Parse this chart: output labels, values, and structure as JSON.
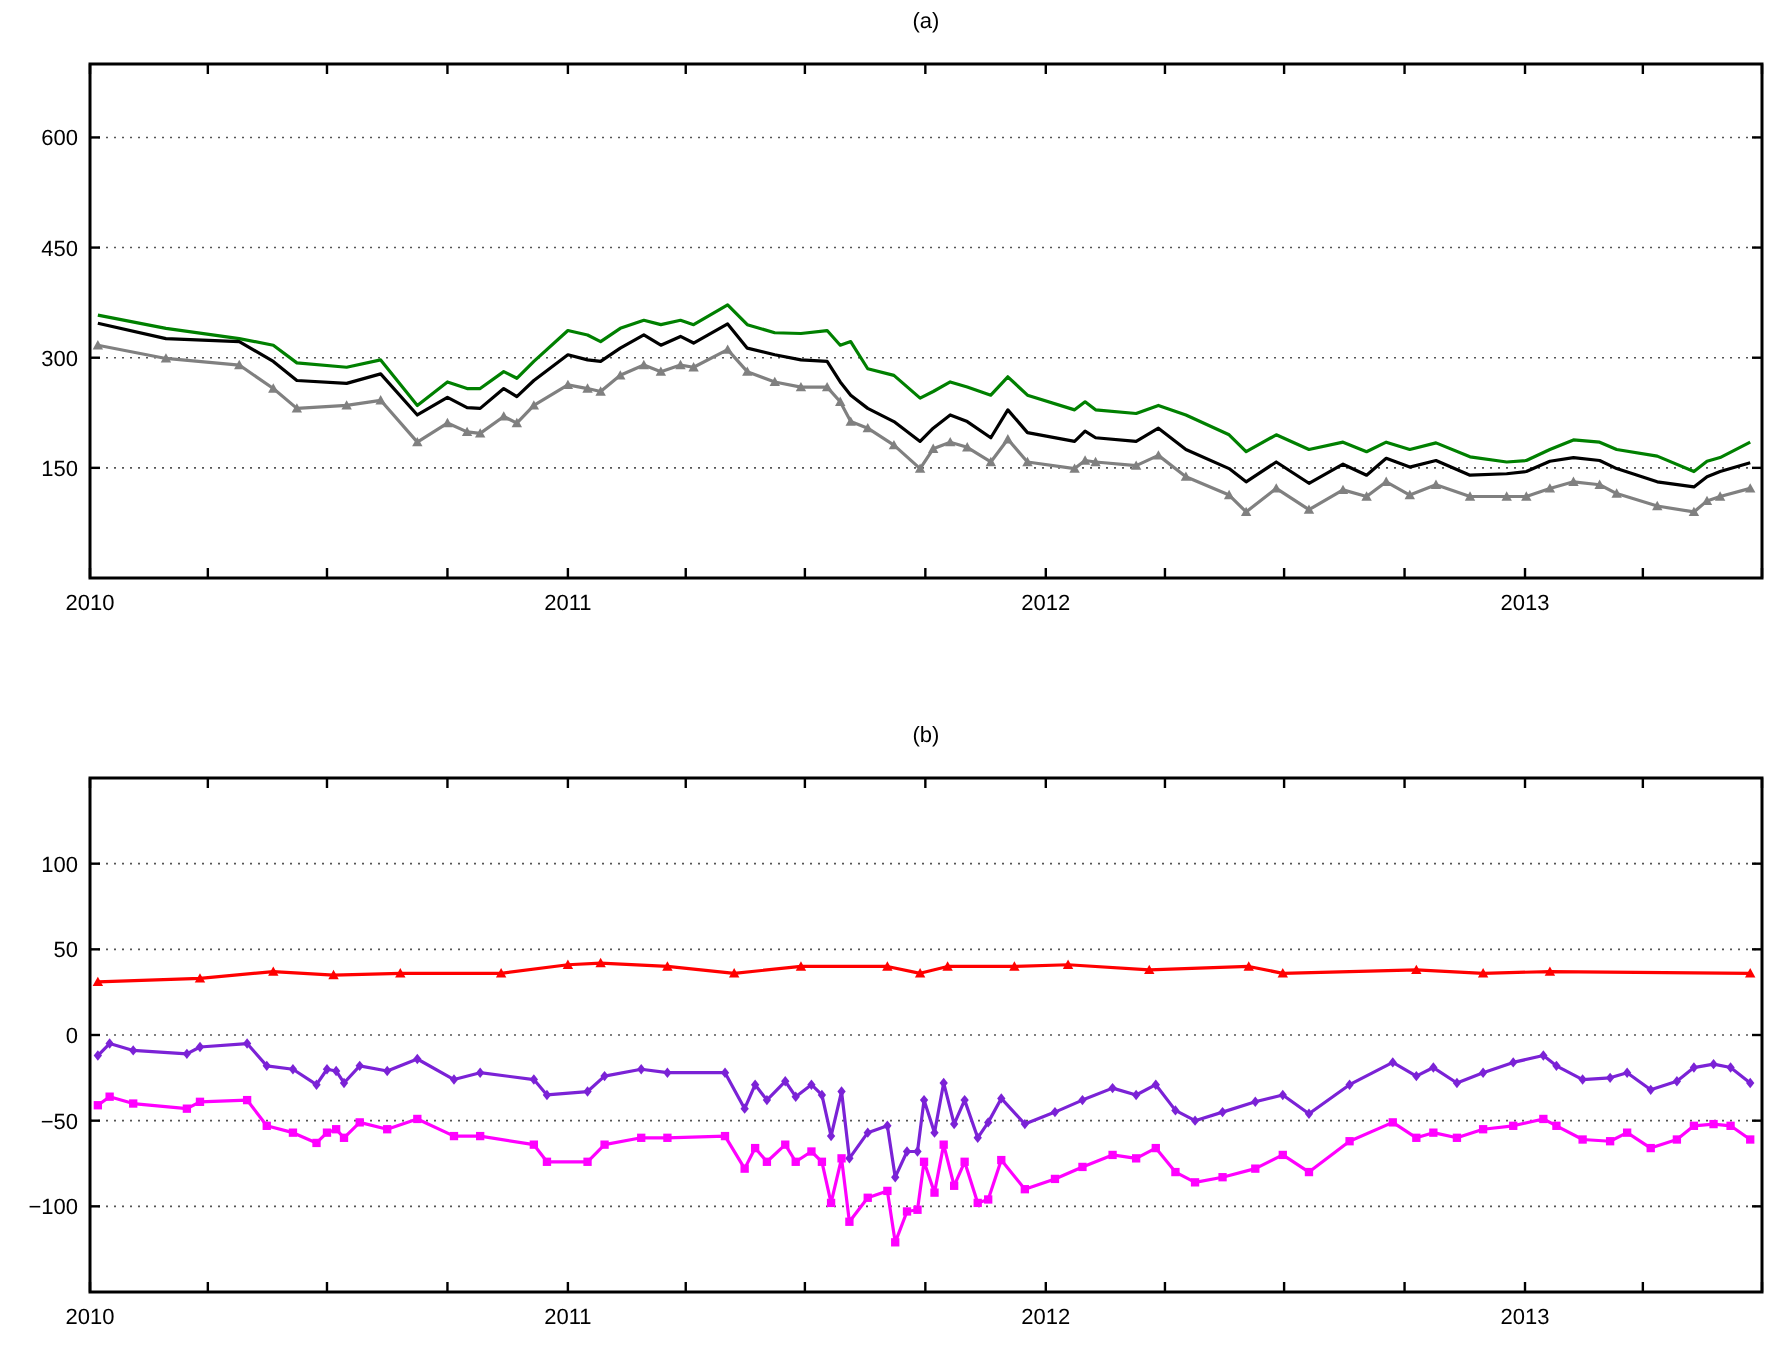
{
  "chart_data": [
    {
      "type": "line",
      "title": "(a)",
      "x": [
        "2010-01-07",
        "2010-02-28",
        "2010-04-25",
        "2010-05-21",
        "2010-06-08",
        "2010-07-16",
        "2010-08-11",
        "2010-09-08",
        "2010-10-01",
        "2010-10-16",
        "2010-10-26",
        "2010-11-13",
        "2010-11-23",
        "2010-12-06",
        "2011-01-01",
        "2011-01-16",
        "2011-01-26",
        "2011-02-10",
        "2011-02-28",
        "2011-03-13",
        "2011-03-28",
        "2011-04-07",
        "2011-05-03",
        "2011-05-18",
        "2011-06-08",
        "2011-06-28",
        "2011-07-18",
        "2011-07-28",
        "2011-08-05",
        "2011-08-18",
        "2011-09-07",
        "2011-09-27",
        "2011-10-07",
        "2011-10-20",
        "2011-11-02",
        "2011-11-20",
        "2011-12-03",
        "2011-12-18",
        "2012-01-23",
        "2012-01-31",
        "2012-02-08",
        "2012-03-10",
        "2012-03-27",
        "2012-04-17",
        "2012-05-20",
        "2012-06-02",
        "2012-06-25",
        "2012-07-20",
        "2012-08-15",
        "2012-09-02",
        "2012-09-17",
        "2012-10-05",
        "2012-10-25",
        "2012-11-20",
        "2012-12-18",
        "2013-01-02",
        "2013-01-20",
        "2013-02-07",
        "2013-02-27",
        "2013-03-12",
        "2013-04-12",
        "2013-05-10",
        "2013-05-20",
        "2013-05-30",
        "2013-06-22"
      ],
      "series": [
        {
          "color": "#008000",
          "marker": "none",
          "values": [
            358,
            340,
            326,
            317,
            293,
            287,
            297,
            235,
            267,
            258,
            258,
            281,
            272,
            295,
            337,
            331,
            322,
            340,
            351,
            345,
            351,
            345,
            372,
            345,
            334,
            333,
            337,
            317,
            322,
            285,
            276,
            245,
            254,
            267,
            260,
            249,
            274,
            249,
            229,
            240,
            229,
            224,
            235,
            222,
            195,
            172,
            195,
            175,
            185,
            172,
            185,
            175,
            184,
            165,
            158,
            160,
            175,
            188,
            185,
            175,
            166,
            145,
            159,
            164,
            185
          ]
        },
        {
          "color": "#000000",
          "marker": "none",
          "values": [
            347,
            326,
            322,
            295,
            269,
            265,
            278,
            222,
            246,
            232,
            231,
            258,
            247,
            269,
            304,
            297,
            295,
            313,
            331,
            317,
            329,
            320,
            346,
            313,
            304,
            297,
            295,
            267,
            249,
            231,
            213,
            186,
            204,
            222,
            213,
            191,
            229,
            198,
            186,
            200,
            191,
            186,
            204,
            175,
            149,
            131,
            158,
            129,
            155,
            140,
            163,
            151,
            160,
            140,
            142,
            145,
            159,
            164,
            160,
            149,
            131,
            124,
            138,
            145,
            157
          ]
        },
        {
          "color": "#808080",
          "marker": "triangle",
          "values": [
            317,
            299,
            290,
            258,
            231,
            235,
            242,
            185,
            211,
            199,
            197,
            220,
            211,
            235,
            263,
            258,
            254,
            276,
            290,
            281,
            290,
            287,
            311,
            281,
            267,
            260,
            260,
            240,
            213,
            204,
            181,
            149,
            176,
            185,
            178,
            158,
            189,
            158,
            149,
            160,
            158,
            153,
            167,
            138,
            113,
            90,
            122,
            93,
            120,
            111,
            131,
            113,
            127,
            111,
            111,
            111,
            122,
            131,
            127,
            115,
            98,
            90,
            105,
            111,
            122
          ]
        }
      ],
      "xlim": [
        "2010-01-01",
        "2013-07-01"
      ],
      "xticks": [
        {
          "value": "2010-01-01",
          "label": "2010"
        },
        {
          "value": "2010-04-01",
          "label": null
        },
        {
          "value": "2010-07-01",
          "label": null
        },
        {
          "value": "2010-10-01",
          "label": null
        },
        {
          "value": "2011-01-01",
          "label": "2011"
        },
        {
          "value": "2011-04-01",
          "label": null
        },
        {
          "value": "2011-07-01",
          "label": null
        },
        {
          "value": "2011-10-01",
          "label": null
        },
        {
          "value": "2012-01-01",
          "label": "2012"
        },
        {
          "value": "2012-04-01",
          "label": null
        },
        {
          "value": "2012-07-01",
          "label": null
        },
        {
          "value": "2012-10-01",
          "label": null
        },
        {
          "value": "2013-01-01",
          "label": "2013"
        },
        {
          "value": "2013-04-01",
          "label": null
        },
        {
          "value": "2013-07-01",
          "label": null
        }
      ],
      "ylim": [
        0,
        700
      ],
      "yticks": [
        150,
        300,
        450,
        600
      ],
      "grid": "y"
    },
    {
      "type": "line",
      "title": "(b)",
      "x": [
        "2010-01-07",
        "2010-01-16",
        "2010-02-03",
        "2010-03-16",
        "2010-03-26",
        "2010-05-01",
        "2010-05-16",
        "2010-06-05",
        "2010-06-23",
        "2010-07-01",
        "2010-07-08",
        "2010-07-14",
        "2010-07-26",
        "2010-08-16",
        "2010-09-08",
        "2010-10-06",
        "2010-10-26",
        "2010-12-06",
        "2010-12-16",
        "2011-01-16",
        "2011-01-29",
        "2011-02-26",
        "2011-03-18",
        "2011-05-01",
        "2011-05-16",
        "2011-05-24",
        "2011-06-02",
        "2011-06-16",
        "2011-06-24",
        "2011-07-06",
        "2011-07-14",
        "2011-07-21",
        "2011-07-29",
        "2011-08-04",
        "2011-08-18",
        "2011-09-02",
        "2011-09-08",
        "2011-09-17",
        "2011-09-25",
        "2011-09-30",
        "2011-10-08",
        "2011-10-15",
        "2011-10-23",
        "2011-10-31",
        "2011-11-10",
        "2011-11-18",
        "2011-11-28",
        "2011-12-16",
        "2012-01-08",
        "2012-01-29",
        "2012-02-21",
        "2012-03-10",
        "2012-03-25",
        "2012-04-09",
        "2012-04-24",
        "2012-05-15",
        "2012-06-09",
        "2012-06-30",
        "2012-07-20",
        "2012-08-20",
        "2012-09-22",
        "2012-10-10",
        "2012-10-23",
        "2012-11-10",
        "2012-11-30",
        "2012-12-23",
        "2013-01-15",
        "2013-01-25",
        "2013-02-14",
        "2013-03-07",
        "2013-03-20",
        "2013-04-07",
        "2013-04-27",
        "2013-05-10",
        "2013-05-25",
        "2013-06-07",
        "2013-06-22"
      ],
      "series": [
        {
          "color": "#ff0000",
          "marker": "triangle",
          "x": [
            "2010-01-07",
            "2010-03-26",
            "2010-05-21",
            "2010-07-06",
            "2010-08-26",
            "2010-11-11",
            "2011-01-01",
            "2011-01-26",
            "2011-03-18",
            "2011-05-08",
            "2011-06-28",
            "2011-09-02",
            "2011-09-27",
            "2011-10-18",
            "2011-12-08",
            "2012-01-18",
            "2012-03-20",
            "2012-06-04",
            "2012-06-30",
            "2012-10-10",
            "2012-11-30",
            "2013-01-20",
            "2013-06-22"
          ],
          "values": [
            31,
            33,
            37,
            35,
            36,
            36,
            41,
            42,
            40,
            36,
            40,
            40,
            36,
            40,
            40,
            41,
            38,
            40,
            36,
            38,
            36,
            37,
            36
          ]
        },
        {
          "color": "#7b22d6",
          "marker": "diamond",
          "values": [
            -12,
            -5,
            -9,
            -11,
            -7,
            -5,
            -18,
            -20,
            -29,
            -20,
            -21,
            -28,
            -18,
            -21,
            -14,
            -26,
            -22,
            -26,
            -35,
            -33,
            -24,
            -20,
            -22,
            -22,
            -43,
            -29,
            -38,
            -27,
            -36,
            -29,
            -35,
            -59,
            -33,
            -72,
            -57,
            -53,
            -83,
            -68,
            -68,
            -38,
            -57,
            -28,
            -52,
            -38,
            -60,
            -51,
            -37,
            -52,
            -45,
            -38,
            -31,
            -35,
            -29,
            -44,
            -50,
            -45,
            -39,
            -35,
            -46,
            -29,
            -16,
            -24,
            -19,
            -28,
            -22,
            -16,
            -12,
            -18,
            -26,
            -25,
            -22,
            -32,
            -27,
            -19,
            -17,
            -19,
            -28
          ]
        },
        {
          "color": "#ff00ff",
          "marker": "square",
          "values": [
            -41,
            -36,
            -40,
            -43,
            -39,
            -38,
            -53,
            -57,
            -63,
            -57,
            -55,
            -60,
            -51,
            -55,
            -49,
            -59,
            -59,
            -64,
            -74,
            -74,
            -64,
            -60,
            -60,
            -59,
            -78,
            -66,
            -74,
            -64,
            -74,
            -68,
            -74,
            -98,
            -72,
            -109,
            -95,
            -91,
            -121,
            -103,
            -102,
            -74,
            -92,
            -64,
            -88,
            -74,
            -98,
            -96,
            -73,
            -90,
            -84,
            -77,
            -70,
            -72,
            -66,
            -80,
            -86,
            -83,
            -78,
            -70,
            -80,
            -62,
            -51,
            -60,
            -57,
            -60,
            -55,
            -53,
            -49,
            -53,
            -61,
            -62,
            -57,
            -66,
            -61,
            -53,
            -52,
            -53,
            -61
          ]
        }
      ],
      "xlim": [
        "2010-01-01",
        "2013-07-01"
      ],
      "xticks": [
        {
          "value": "2010-01-01",
          "label": "2010"
        },
        {
          "value": "2010-04-01",
          "label": null
        },
        {
          "value": "2010-07-01",
          "label": null
        },
        {
          "value": "2010-10-01",
          "label": null
        },
        {
          "value": "2011-01-01",
          "label": "2011"
        },
        {
          "value": "2011-04-01",
          "label": null
        },
        {
          "value": "2011-07-01",
          "label": null
        },
        {
          "value": "2011-10-01",
          "label": null
        },
        {
          "value": "2012-01-01",
          "label": "2012"
        },
        {
          "value": "2012-04-01",
          "label": null
        },
        {
          "value": "2012-07-01",
          "label": null
        },
        {
          "value": "2012-10-01",
          "label": null
        },
        {
          "value": "2013-01-01",
          "label": "2013"
        },
        {
          "value": "2013-04-01",
          "label": null
        },
        {
          "value": "2013-07-01",
          "label": null
        }
      ],
      "ylim": [
        -150,
        150
      ],
      "yticks": [
        -100,
        -50,
        0,
        50,
        100
      ],
      "grid": "y"
    }
  ]
}
